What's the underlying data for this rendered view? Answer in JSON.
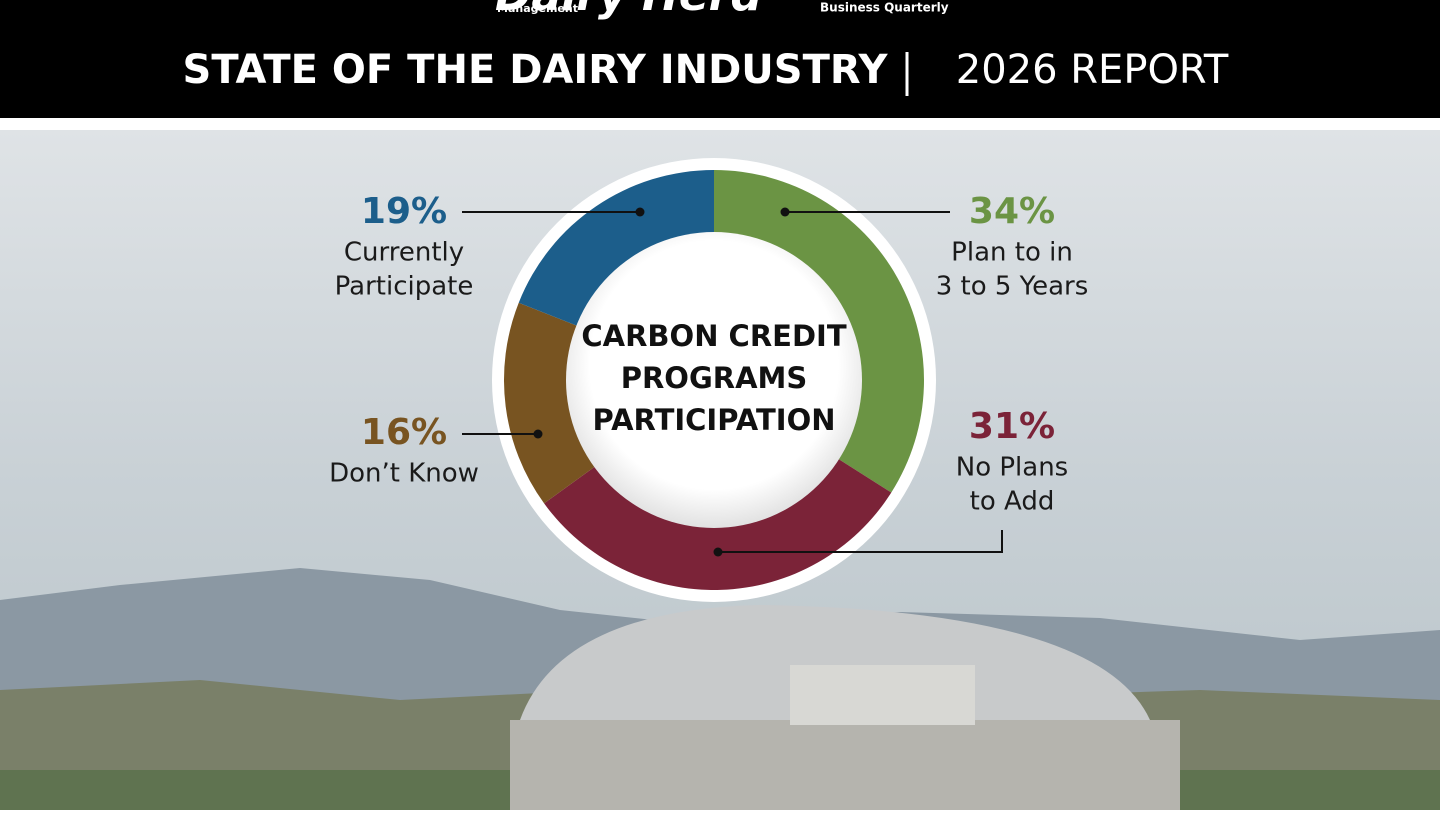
{
  "header": {
    "logo": "Dairy Herd",
    "logo_sub": "Management",
    "tagline": "Business Quarterly",
    "title": "STATE OF THE DAIRY INDUSTRY",
    "report": "2026 REPORT"
  },
  "chart_data": {
    "type": "donut",
    "title": [
      "CARBON CREDIT",
      "PROGRAMS",
      "PARTICIPATION"
    ],
    "categories": [
      [
        "Plan to in",
        "3 to 5 Years"
      ],
      [
        "No Plans",
        "to Add"
      ],
      [
        "Don’t Know"
      ],
      [
        "Currently",
        "Participate"
      ]
    ],
    "values": [
      34,
      31,
      16,
      19
    ],
    "value_labels": [
      "34%",
      "31%",
      "16%",
      "19%"
    ],
    "colors": [
      "#6b9444",
      "#7b2338",
      "#785421",
      "#1c5e8b"
    ]
  }
}
